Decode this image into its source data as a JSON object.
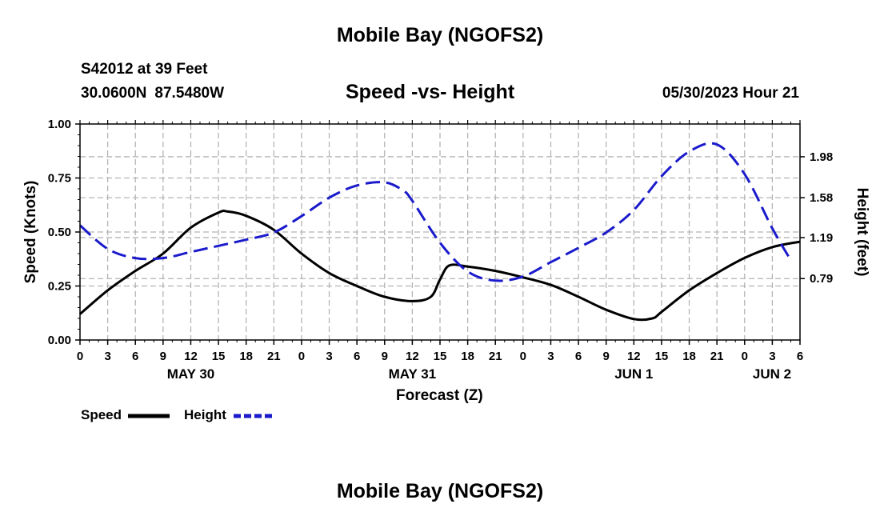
{
  "page": {
    "title": "Mobile Bay (NGOFS2)",
    "footer_title": "Mobile Bay (NGOFS2)"
  },
  "station": {
    "id_line": "S42012 at 39 Feet",
    "lat": "30.0600N",
    "lon": "87.5480W"
  },
  "timestamp": "05/30/2023 Hour 21",
  "chart_data": {
    "type": "line",
    "title": "Speed -vs- Height",
    "xlabel": "Forecast (Z)",
    "ylabel": "Speed (Knots)",
    "y2label": "Height (feet)",
    "ylim": [
      0,
      1
    ],
    "y2lim": [
      0.19,
      2.3
    ],
    "grid": true,
    "x_range_hours": [
      0,
      78
    ],
    "x_tick_hours": [
      0,
      3,
      6,
      9,
      12,
      15,
      18,
      21,
      24,
      27,
      30,
      33,
      36,
      39,
      42,
      45,
      48,
      51,
      54,
      57,
      60,
      63,
      66,
      69,
      72,
      75,
      78
    ],
    "x_tick_labels": [
      "0",
      "3",
      "6",
      "9",
      "12",
      "15",
      "18",
      "21",
      "0",
      "3",
      "6",
      "9",
      "12",
      "15",
      "18",
      "21",
      "0",
      "3",
      "6",
      "9",
      "12",
      "15",
      "18",
      "21",
      "0",
      "3",
      "6"
    ],
    "day_labels": [
      {
        "label": "MAY 30",
        "hour": 12
      },
      {
        "label": "MAY 31",
        "hour": 36
      },
      {
        "label": "JUN 1",
        "hour": 60
      },
      {
        "label": "JUN 2",
        "hour": 78
      }
    ],
    "y_ticks": [
      0,
      0.25,
      0.5,
      0.75,
      1.0
    ],
    "y_tick_labels": [
      "0.00",
      "0.25",
      "0.50",
      "0.75",
      "1.00"
    ],
    "y2_ticks": [
      0.79,
      1.19,
      1.58,
      1.98
    ],
    "y2_tick_labels": [
      "0.79",
      "1.19",
      "1.58",
      "1.98"
    ],
    "legend": [
      {
        "name": "Speed",
        "color": "#000000",
        "dash": "solid"
      },
      {
        "name": "Height",
        "color": "#1a1acc",
        "dash": "dashed"
      }
    ],
    "series": [
      {
        "name": "Speed",
        "axis": "left",
        "color": "#000000",
        "x": [
          0,
          3,
          6,
          9,
          12,
          15,
          16,
          18,
          21,
          24,
          27,
          30,
          33,
          36,
          38,
          39,
          40,
          42,
          45,
          48,
          51,
          54,
          57,
          60,
          62,
          63,
          66,
          69,
          72,
          75,
          78
        ],
        "values": [
          0.12,
          0.23,
          0.32,
          0.4,
          0.52,
          0.59,
          0.595,
          0.575,
          0.51,
          0.4,
          0.31,
          0.25,
          0.2,
          0.18,
          0.2,
          0.28,
          0.345,
          0.34,
          0.32,
          0.29,
          0.255,
          0.2,
          0.14,
          0.097,
          0.1,
          0.13,
          0.23,
          0.31,
          0.38,
          0.43,
          0.455
        ]
      },
      {
        "name": "Height",
        "axis": "right",
        "color": "#1a1acc",
        "x": [
          0,
          3,
          6,
          9,
          12,
          15,
          18,
          21,
          24,
          27,
          30,
          33,
          35,
          36,
          39,
          42,
          45,
          48,
          51,
          54,
          57,
          60,
          63,
          66,
          69,
          72,
          75,
          77
        ],
        "values": [
          1.31,
          1.08,
          0.99,
          0.99,
          1.05,
          1.11,
          1.17,
          1.24,
          1.4,
          1.58,
          1.7,
          1.73,
          1.65,
          1.55,
          1.14,
          0.86,
          0.77,
          0.81,
          0.95,
          1.09,
          1.24,
          1.46,
          1.79,
          2.03,
          2.1,
          1.81,
          1.28,
          0.97
        ]
      }
    ]
  }
}
